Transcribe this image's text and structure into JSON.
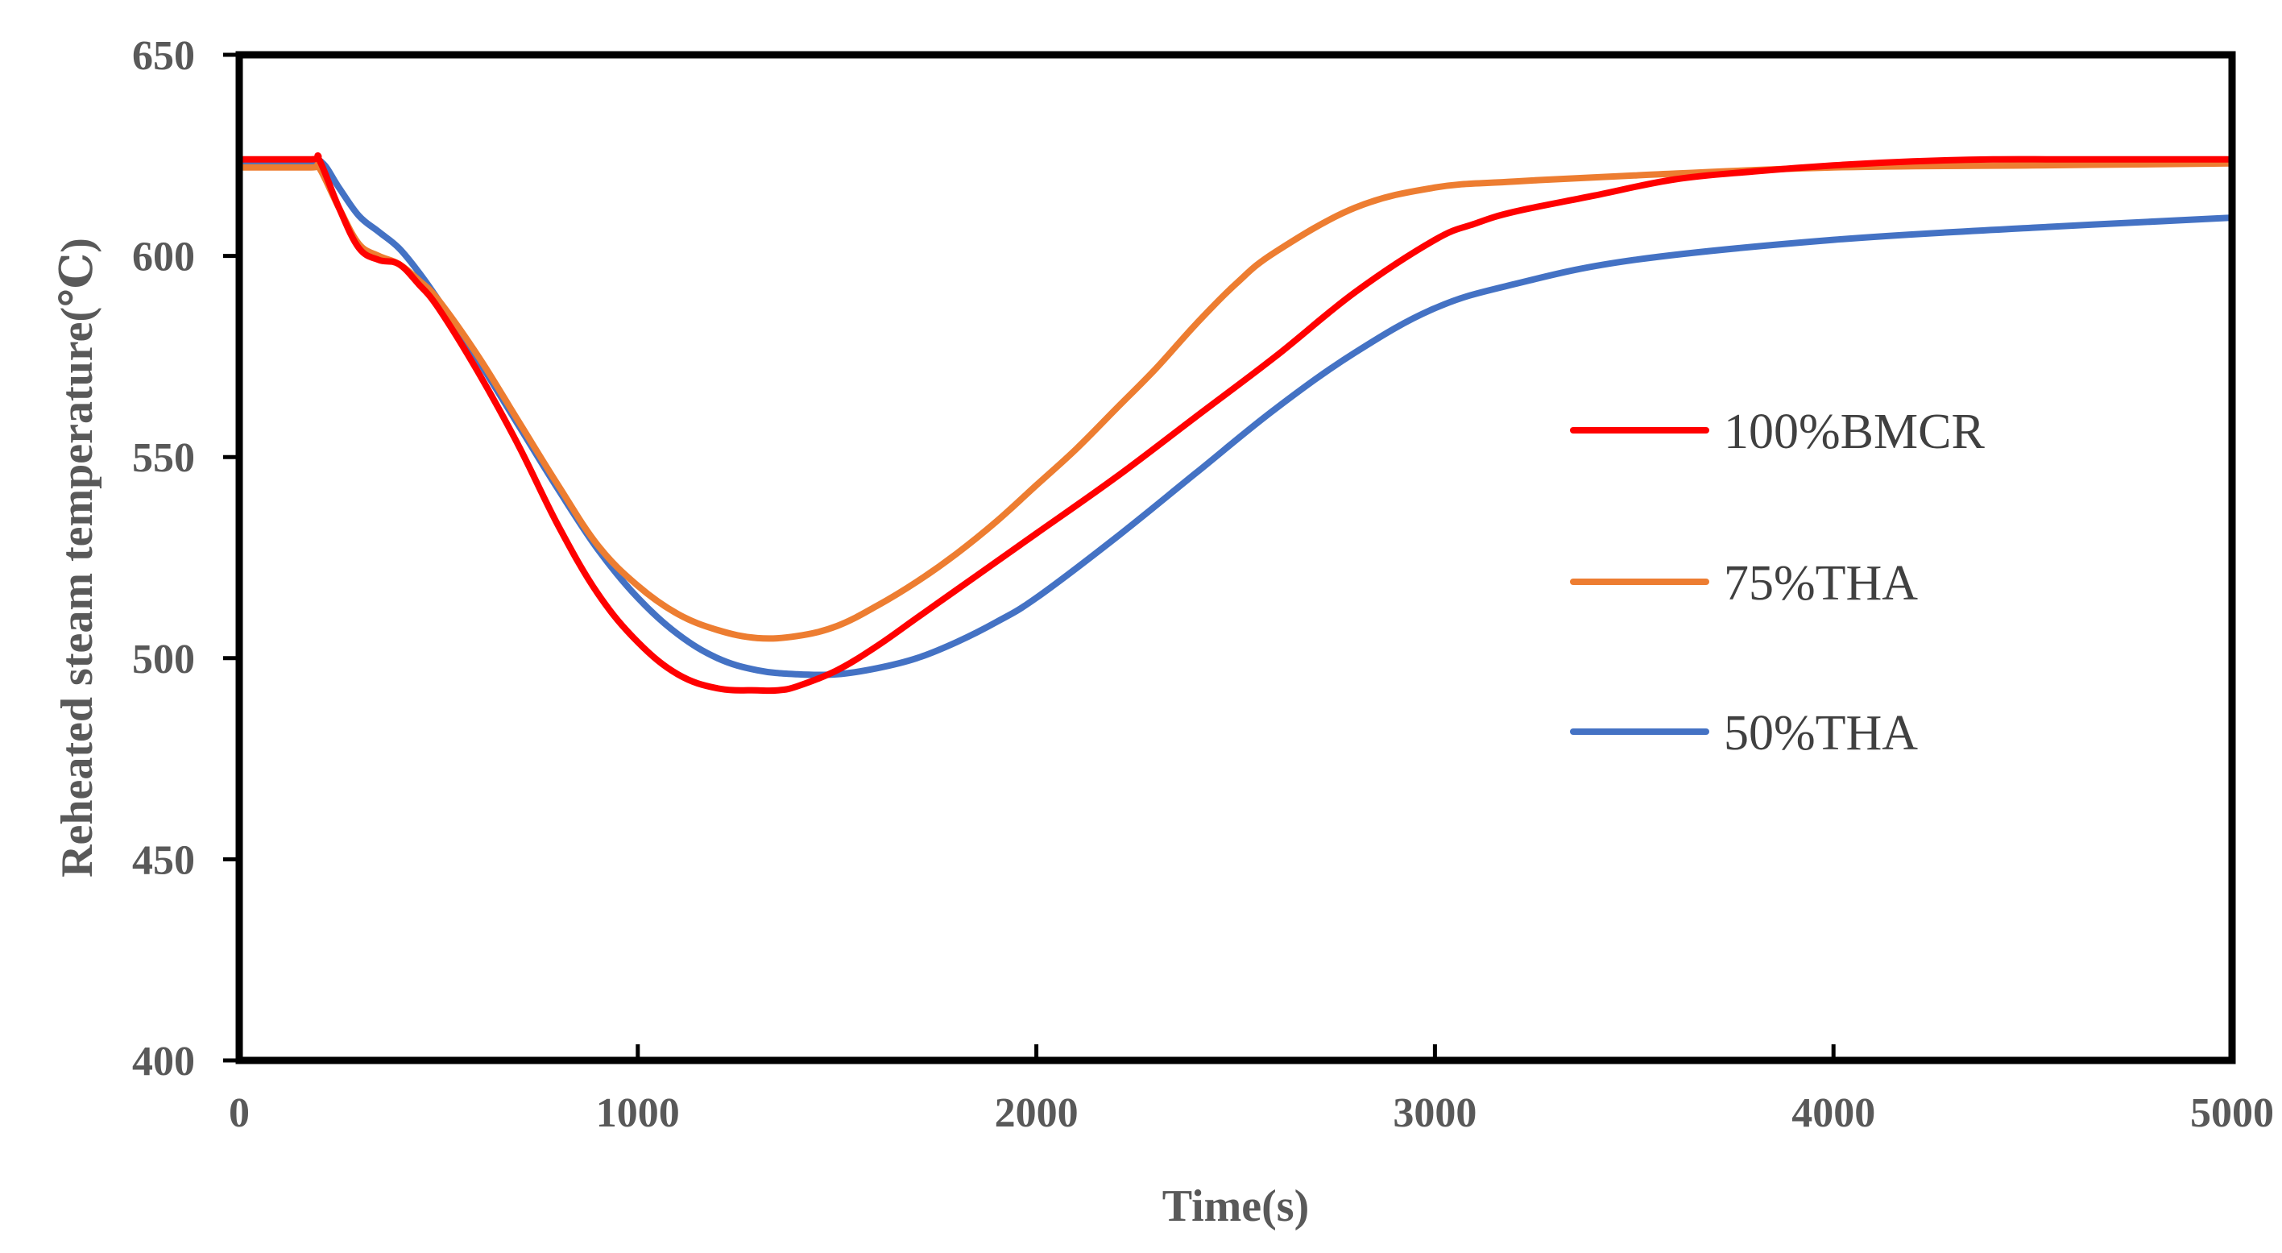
{
  "chart_data": {
    "type": "line",
    "title": "",
    "xlabel": "Time(s)",
    "ylabel": "Reheated steam temperature(℃)",
    "xlim": [
      0,
      5000
    ],
    "ylim": [
      400,
      650
    ],
    "xticks": [
      0,
      1000,
      2000,
      3000,
      4000,
      5000
    ],
    "yticks": [
      400,
      450,
      500,
      550,
      600,
      650
    ],
    "xtick_labels": [
      "0",
      "1000",
      "2000",
      "3000",
      "4000",
      "5000"
    ],
    "ytick_labels": [
      "400",
      "450",
      "500",
      "550",
      "600",
      "650"
    ],
    "grid": false,
    "legend_position": "right",
    "series": [
      {
        "name": "100%BMCR",
        "color": "#ff0000",
        "x": [
          0,
          180,
          200,
          250,
          300,
          350,
          400,
          450,
          500,
          600,
          700,
          800,
          900,
          1000,
          1100,
          1200,
          1300,
          1350,
          1400,
          1500,
          1600,
          1700,
          1800,
          1900,
          2000,
          2200,
          2400,
          2600,
          2800,
          3000,
          3100,
          3200,
          3400,
          3600,
          3800,
          4000,
          4200,
          4400,
          4600,
          5000
        ],
        "y": [
          624,
          624,
          624,
          612,
          602,
          599,
          598,
          593,
          587,
          571,
          553,
          533,
          516,
          504,
          496,
          492.5,
          492,
          492,
          493,
          497,
          503,
          510,
          517,
          524,
          531,
          545,
          560,
          575,
          591,
          604,
          608,
          611,
          615,
          619,
          621,
          622.5,
          623.5,
          624,
          624,
          624
        ]
      },
      {
        "name": "75%THA",
        "color": "#ed7d31",
        "x": [
          0,
          180,
          200,
          250,
          300,
          350,
          400,
          450,
          500,
          600,
          700,
          800,
          900,
          1000,
          1100,
          1200,
          1300,
          1400,
          1500,
          1600,
          1700,
          1800,
          1900,
          2000,
          2100,
          2200,
          2300,
          2400,
          2500,
          2600,
          2800,
          3000,
          3200,
          3500,
          4000,
          4500,
          5000
        ],
        "y": [
          622,
          622,
          622,
          612,
          603,
          600,
          598,
          594,
          589,
          575,
          559,
          543,
          528,
          518,
          511,
          507,
          505,
          505.5,
          508,
          513,
          519,
          526,
          534,
          543,
          552,
          562,
          572,
          583,
          593,
          601,
          612,
          617,
          618.5,
          620,
          622,
          622.5,
          623
        ]
      },
      {
        "name": "50%THA",
        "color": "#4472c4",
        "x": [
          0,
          180,
          210,
          250,
          300,
          350,
          400,
          450,
          500,
          600,
          700,
          800,
          900,
          1000,
          1100,
          1200,
          1300,
          1400,
          1500,
          1600,
          1700,
          1800,
          1900,
          2000,
          2200,
          2400,
          2600,
          2800,
          3000,
          3200,
          3500,
          4000,
          4500,
          5000
        ],
        "y": [
          623,
          623,
          623,
          617,
          610,
          606,
          602,
          596,
          589,
          574,
          558,
          542,
          527,
          515,
          506,
          500,
          497,
          496,
          496,
          497.5,
          500,
          504,
          509,
          515,
          530,
          546,
          562,
          576,
          587,
          593,
          599,
          604,
          607,
          609.5
        ]
      }
    ]
  }
}
